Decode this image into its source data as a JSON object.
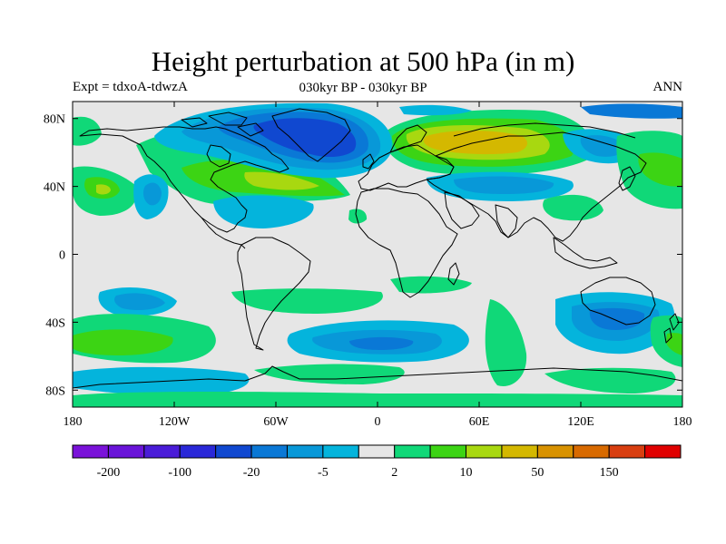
{
  "title": "Height perturbation at 500 hPa (in m)",
  "subtitle_left": "Expt = tdxoA-tdwzA",
  "subtitle_center": "030kyr BP - 030kyr BP",
  "subtitle_right": "ANN",
  "axes": {
    "lon_ticks": [
      {
        "label": "180",
        "lon": -180
      },
      {
        "label": "120W",
        "lon": -120
      },
      {
        "label": "60W",
        "lon": -60
      },
      {
        "label": "0",
        "lon": 0
      },
      {
        "label": "60E",
        "lon": 60
      },
      {
        "label": "120E",
        "lon": 120
      },
      {
        "label": "180",
        "lon": 180
      }
    ],
    "lat_ticks": [
      {
        "label": "80N",
        "lat": 80
      },
      {
        "label": "40N",
        "lat": 40
      },
      {
        "label": "0",
        "lat": 0
      },
      {
        "label": "40S",
        "lat": -40
      },
      {
        "label": "80S",
        "lat": -80
      }
    ],
    "lon_range": [
      -180,
      180
    ],
    "lat_range": [
      -90,
      90
    ]
  },
  "colorbar": {
    "colors": [
      "#7a12d9",
      "#6a14d9",
      "#4a1cd8",
      "#2a28d8",
      "#1048d0",
      "#0a78d6",
      "#0898d8",
      "#04b4dc",
      "#e6e6e6",
      "#10d878",
      "#3cd414",
      "#a8d810",
      "#d4b800",
      "#d89200",
      "#d86a00",
      "#d83e10",
      "#e00000"
    ],
    "labels": [
      {
        "text": "-200",
        "boundary": 1
      },
      {
        "text": "-100",
        "boundary": 3
      },
      {
        "text": "-20",
        "boundary": 5
      },
      {
        "text": "-5",
        "boundary": 7
      },
      {
        "text": "2",
        "boundary": 9
      },
      {
        "text": "10",
        "boundary": 11
      },
      {
        "text": "50",
        "boundary": 13
      },
      {
        "text": "150",
        "boundary": 15
      }
    ]
  },
  "colors": {
    "background_field": "#e6e6e6",
    "coast": "#000000"
  }
}
